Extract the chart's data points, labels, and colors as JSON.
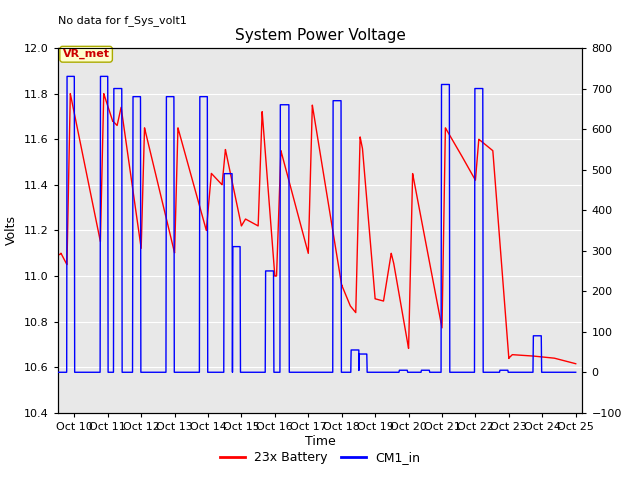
{
  "title": "System Power Voltage",
  "top_left_text": "No data for f_Sys_volt1",
  "ylabel_left": "Volts",
  "xlabel": "Time",
  "ylim_left": [
    10.4,
    12.0
  ],
  "ylim_right": [
    -100,
    800
  ],
  "xlim": [
    9.5,
    25.2
  ],
  "axes_bg_color": "#e8e8e8",
  "grid_color": "#ffffff",
  "legend_labels": [
    "23x Battery",
    "CM1_in"
  ],
  "legend_colors": [
    "red",
    "blue"
  ],
  "vr_met_box_facecolor": "#ffffcc",
  "vr_met_box_edgecolor": "#aaaa00",
  "vr_met_text_color": "#cc0000",
  "x_tick_positions": [
    10,
    11,
    12,
    13,
    14,
    15,
    16,
    17,
    18,
    19,
    20,
    21,
    22,
    23,
    24,
    25
  ],
  "x_tick_labels": [
    "Oct 10",
    "Oct 11",
    "Oct 12",
    "Oct 13",
    "Oct 14",
    "Oct 15",
    "Oct 16",
    "Oct 17",
    "Oct 18",
    "Oct 19",
    "Oct 20",
    "Oct 21",
    "Oct 22",
    "Oct 23",
    "Oct 24",
    "Oct 25"
  ],
  "yticks_left": [
    10.4,
    10.6,
    10.8,
    11.0,
    11.2,
    11.4,
    11.6,
    11.8,
    12.0
  ],
  "yticks_right": [
    -100,
    0,
    100,
    200,
    300,
    400,
    500,
    600,
    700,
    800
  ]
}
